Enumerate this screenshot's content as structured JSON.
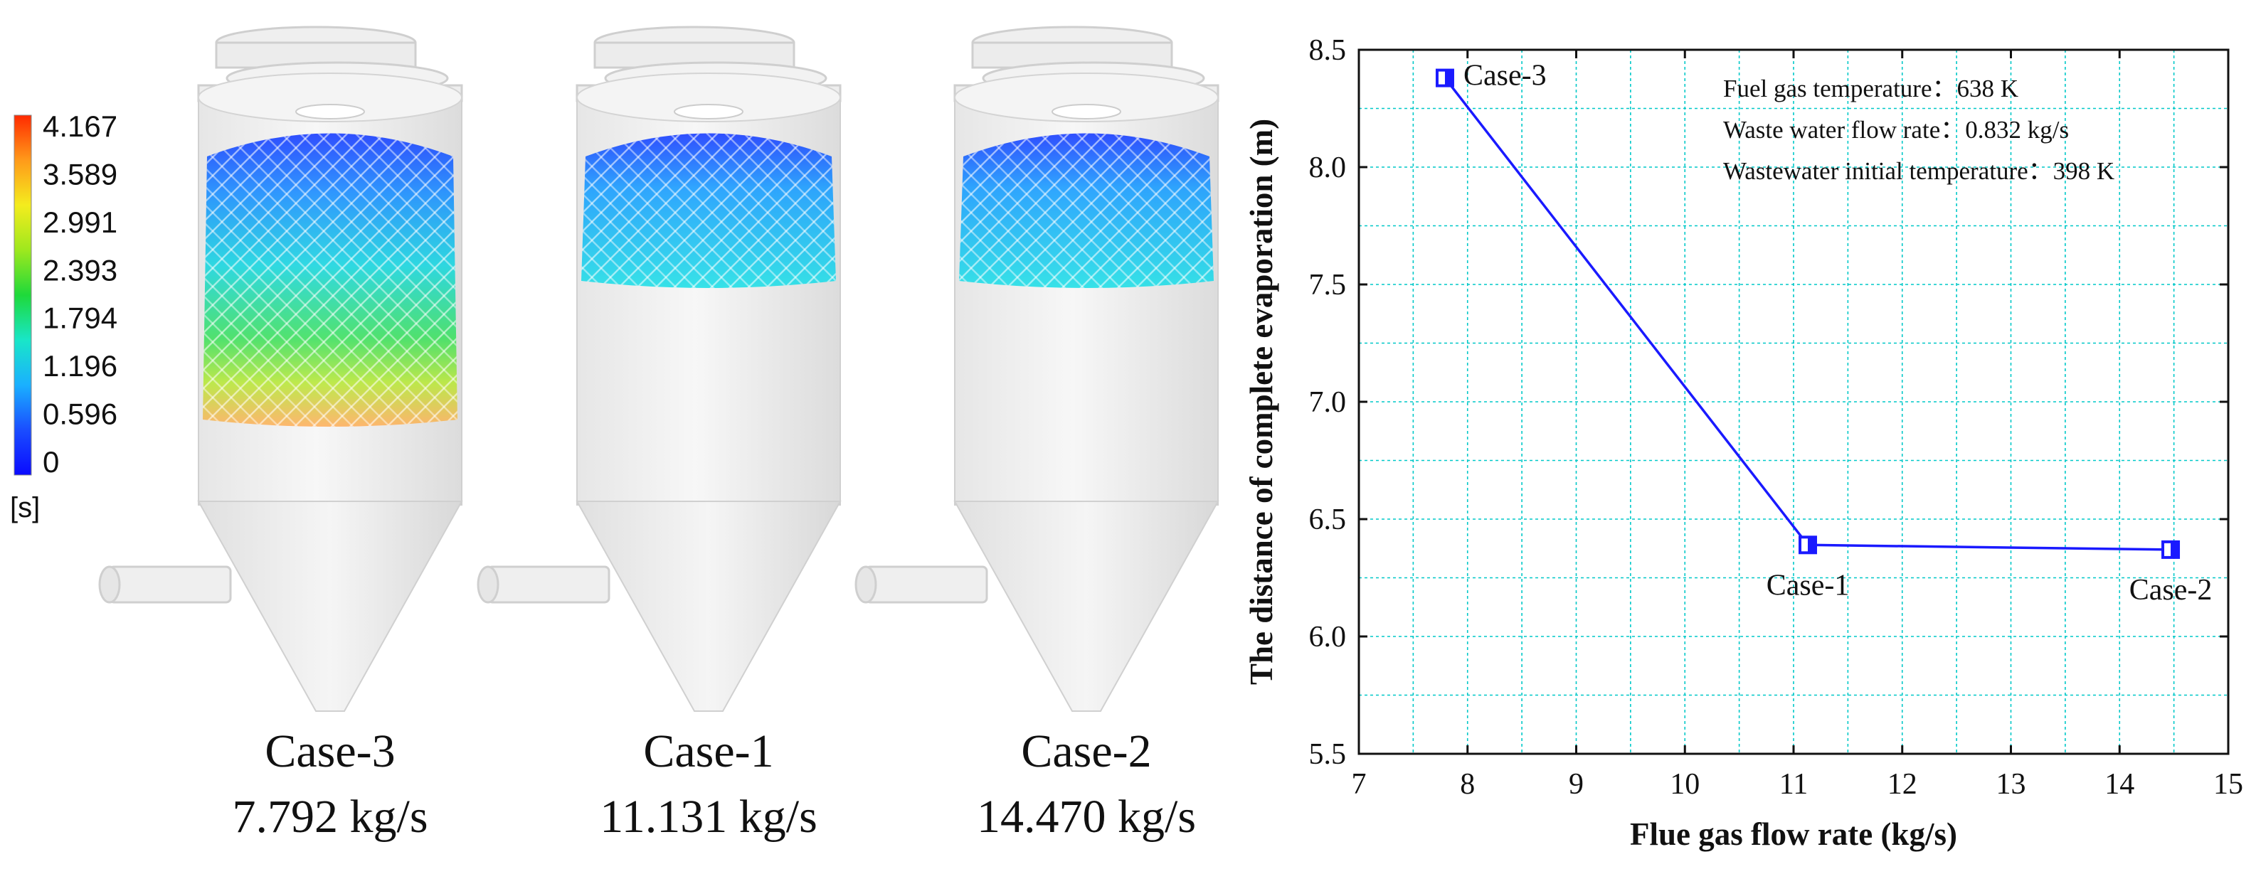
{
  "colorbar": {
    "unit": "[s]",
    "ticks": [
      "4.167",
      "3.589",
      "2.991",
      "2.393",
      "1.794",
      "1.196",
      "0.596",
      "0"
    ],
    "gradient": [
      "#ff2a00",
      "#ff9a1a",
      "#f4ec1e",
      "#9ee81e",
      "#1ed93a",
      "#19e6c8",
      "#1ab0ff",
      "#1a4dff",
      "#0a0aff"
    ]
  },
  "towers": [
    {
      "case": "Case-3",
      "flow": "7.792 kg/s",
      "residence_level": 1.0
    },
    {
      "case": "Case-1",
      "flow": "11.131 kg/s",
      "residence_level": 0.35
    },
    {
      "case": "Case-2",
      "flow": "14.470 kg/s",
      "residence_level": 0.35
    }
  ],
  "chart_data": {
    "type": "line",
    "xlabel": "Flue gas flow rate (kg/s)",
    "ylabel": "The distance of  complete evaporation (m)",
    "xlim": [
      7,
      15
    ],
    "ylim": [
      5.5,
      8.5
    ],
    "xticks": [
      "7",
      "8",
      "9",
      "10",
      "11",
      "12",
      "13",
      "14",
      "15"
    ],
    "yticks": [
      "5.5",
      "6.0",
      "6.5",
      "7.0",
      "7.5",
      "8.0",
      "8.5"
    ],
    "series": [
      {
        "name": "complete evaporation distance",
        "color": "#1a1aff",
        "x": [
          7.792,
          11.131,
          14.47
        ],
        "y": [
          8.38,
          6.39,
          6.37
        ],
        "labels": [
          "Case-3",
          "Case-1",
          "Case-2"
        ]
      }
    ],
    "annotations": [
      "Fuel gas temperature：638 K",
      "Waste water flow rate：0.832 kg/s",
      "Wastewater initial temperature：398 K"
    ],
    "grid": true
  }
}
